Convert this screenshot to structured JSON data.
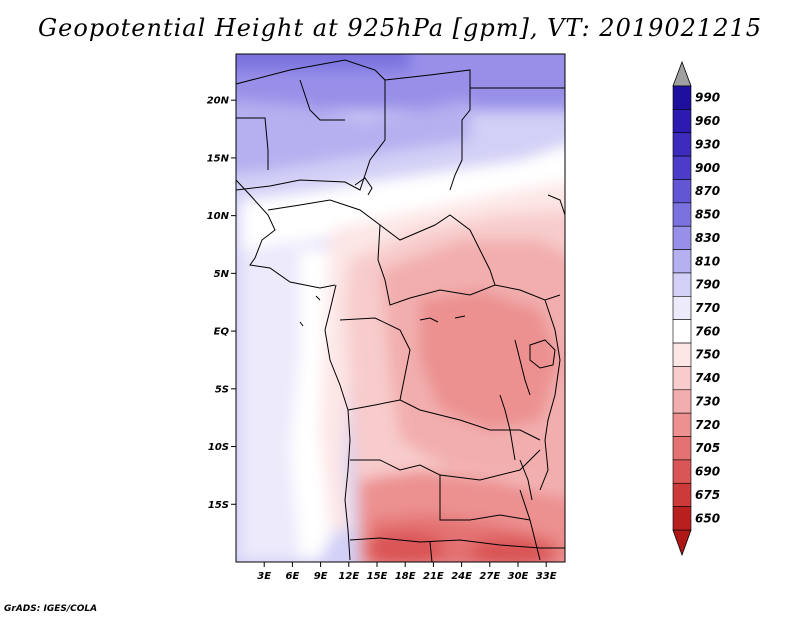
{
  "title": "Geopotential Height at 925hPa [gpm], VT: 2019021215",
  "credit": "GrADS: IGES/COLA",
  "map": {
    "lat_ticks": [
      "20N",
      "15N",
      "10N",
      "5N",
      "EQ",
      "5S",
      "10S",
      "15S"
    ],
    "lon_ticks": [
      "3E",
      "6E",
      "9E",
      "12E",
      "15E",
      "18E",
      "21E",
      "24E",
      "27E",
      "30E",
      "33E"
    ],
    "lon_range_deg": [
      0,
      35
    ],
    "lat_range_deg": [
      -20,
      24
    ]
  },
  "colorbar": {
    "levels": [
      "990",
      "960",
      "930",
      "900",
      "870",
      "850",
      "830",
      "810",
      "790",
      "770",
      "760",
      "750",
      "740",
      "730",
      "720",
      "705",
      "690",
      "675",
      "650"
    ],
    "colors": [
      "#1e0f9f",
      "#2d1ab0",
      "#3c2bbd",
      "#4d3cc8",
      "#6356d4",
      "#7b72df",
      "#9890e8",
      "#b5b0f0",
      "#d2d0f6",
      "#eceafb",
      "#ffffff",
      "#fde6e6",
      "#f8cccc",
      "#f2aeae",
      "#ec9090",
      "#e47272",
      "#da5555",
      "#cc3a3a",
      "#b82020"
    ],
    "top_triangle_color": "#a0a0a0",
    "bottom_triangle_color": "#b01818"
  }
}
